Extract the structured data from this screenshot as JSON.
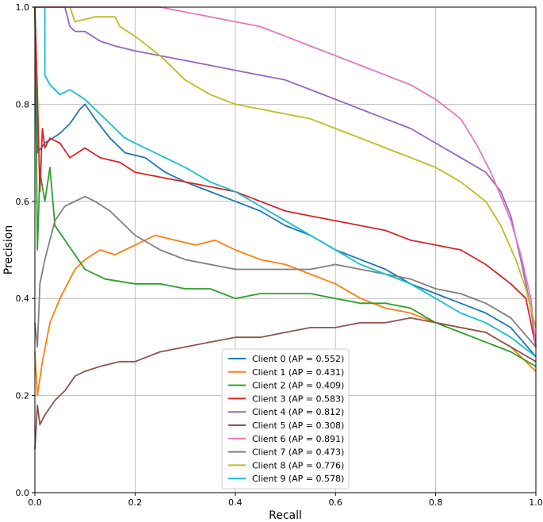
{
  "chart_data": {
    "type": "line",
    "xlabel": "Recall",
    "ylabel": "Precision",
    "xlim": [
      0.0,
      1.0
    ],
    "ylim": [
      0.0,
      1.0
    ],
    "x_ticks": [
      "0.0",
      "0.2",
      "0.4",
      "0.6",
      "0.8",
      "1.0"
    ],
    "y_ticks": [
      "0.0",
      "0.2",
      "0.4",
      "0.6",
      "0.8",
      "1.0"
    ],
    "grid": true,
    "legend_position": "lower-center",
    "series": [
      {
        "name": "Client 0 (AP = 0.552)",
        "color": "#1f77b4",
        "points": [
          [
            0.0,
            1.0
          ],
          [
            0.005,
            0.7
          ],
          [
            0.02,
            0.72
          ],
          [
            0.05,
            0.74
          ],
          [
            0.07,
            0.76
          ],
          [
            0.09,
            0.79
          ],
          [
            0.1,
            0.8
          ],
          [
            0.12,
            0.77
          ],
          [
            0.15,
            0.73
          ],
          [
            0.18,
            0.7
          ],
          [
            0.22,
            0.69
          ],
          [
            0.26,
            0.66
          ],
          [
            0.3,
            0.64
          ],
          [
            0.35,
            0.62
          ],
          [
            0.4,
            0.6
          ],
          [
            0.45,
            0.58
          ],
          [
            0.5,
            0.55
          ],
          [
            0.55,
            0.53
          ],
          [
            0.6,
            0.5
          ],
          [
            0.65,
            0.48
          ],
          [
            0.7,
            0.46
          ],
          [
            0.75,
            0.43
          ],
          [
            0.8,
            0.41
          ],
          [
            0.85,
            0.39
          ],
          [
            0.9,
            0.37
          ],
          [
            0.95,
            0.34
          ],
          [
            1.0,
            0.28
          ]
        ]
      },
      {
        "name": "Client 1 (AP = 0.431)",
        "color": "#ff7f0e",
        "points": [
          [
            0.0,
            0.29
          ],
          [
            0.005,
            0.2
          ],
          [
            0.015,
            0.27
          ],
          [
            0.03,
            0.35
          ],
          [
            0.05,
            0.4
          ],
          [
            0.08,
            0.46
          ],
          [
            0.1,
            0.48
          ],
          [
            0.13,
            0.5
          ],
          [
            0.16,
            0.49
          ],
          [
            0.2,
            0.51
          ],
          [
            0.24,
            0.53
          ],
          [
            0.28,
            0.52
          ],
          [
            0.32,
            0.51
          ],
          [
            0.36,
            0.52
          ],
          [
            0.4,
            0.5
          ],
          [
            0.45,
            0.48
          ],
          [
            0.5,
            0.47
          ],
          [
            0.55,
            0.45
          ],
          [
            0.6,
            0.43
          ],
          [
            0.65,
            0.4
          ],
          [
            0.7,
            0.38
          ],
          [
            0.75,
            0.37
          ],
          [
            0.8,
            0.35
          ],
          [
            0.85,
            0.34
          ],
          [
            0.9,
            0.33
          ],
          [
            0.95,
            0.3
          ],
          [
            1.0,
            0.25
          ]
        ]
      },
      {
        "name": "Client 2 (AP = 0.409)",
        "color": "#2ca02c",
        "points": [
          [
            0.0,
            1.0
          ],
          [
            0.005,
            0.5
          ],
          [
            0.01,
            0.66
          ],
          [
            0.02,
            0.6
          ],
          [
            0.03,
            0.67
          ],
          [
            0.04,
            0.55
          ],
          [
            0.06,
            0.52
          ],
          [
            0.08,
            0.49
          ],
          [
            0.1,
            0.46
          ],
          [
            0.14,
            0.44
          ],
          [
            0.2,
            0.43
          ],
          [
            0.25,
            0.43
          ],
          [
            0.3,
            0.42
          ],
          [
            0.35,
            0.42
          ],
          [
            0.4,
            0.4
          ],
          [
            0.45,
            0.41
          ],
          [
            0.5,
            0.41
          ],
          [
            0.55,
            0.41
          ],
          [
            0.6,
            0.4
          ],
          [
            0.65,
            0.39
          ],
          [
            0.7,
            0.39
          ],
          [
            0.75,
            0.38
          ],
          [
            0.8,
            0.35
          ],
          [
            0.85,
            0.33
          ],
          [
            0.9,
            0.31
          ],
          [
            0.95,
            0.29
          ],
          [
            1.0,
            0.26
          ]
        ]
      },
      {
        "name": "Client 3 (AP = 0.583)",
        "color": "#d62728",
        "points": [
          [
            0.0,
            1.0
          ],
          [
            0.005,
            0.82
          ],
          [
            0.01,
            0.62
          ],
          [
            0.015,
            0.75
          ],
          [
            0.02,
            0.71
          ],
          [
            0.03,
            0.73
          ],
          [
            0.05,
            0.72
          ],
          [
            0.07,
            0.69
          ],
          [
            0.1,
            0.71
          ],
          [
            0.13,
            0.69
          ],
          [
            0.17,
            0.68
          ],
          [
            0.2,
            0.66
          ],
          [
            0.25,
            0.65
          ],
          [
            0.3,
            0.64
          ],
          [
            0.35,
            0.63
          ],
          [
            0.4,
            0.62
          ],
          [
            0.45,
            0.6
          ],
          [
            0.5,
            0.58
          ],
          [
            0.55,
            0.57
          ],
          [
            0.6,
            0.56
          ],
          [
            0.65,
            0.55
          ],
          [
            0.7,
            0.54
          ],
          [
            0.75,
            0.52
          ],
          [
            0.8,
            0.51
          ],
          [
            0.85,
            0.5
          ],
          [
            0.9,
            0.47
          ],
          [
            0.95,
            0.43
          ],
          [
            0.98,
            0.4
          ],
          [
            1.0,
            0.3
          ]
        ]
      },
      {
        "name": "Client 4 (AP = 0.812)",
        "color": "#9467bd",
        "points": [
          [
            0.0,
            1.0
          ],
          [
            0.06,
            1.0
          ],
          [
            0.07,
            0.96
          ],
          [
            0.08,
            0.95
          ],
          [
            0.1,
            0.95
          ],
          [
            0.13,
            0.93
          ],
          [
            0.16,
            0.92
          ],
          [
            0.2,
            0.91
          ],
          [
            0.25,
            0.9
          ],
          [
            0.3,
            0.89
          ],
          [
            0.35,
            0.88
          ],
          [
            0.4,
            0.87
          ],
          [
            0.45,
            0.86
          ],
          [
            0.5,
            0.85
          ],
          [
            0.55,
            0.83
          ],
          [
            0.6,
            0.81
          ],
          [
            0.65,
            0.79
          ],
          [
            0.7,
            0.77
          ],
          [
            0.75,
            0.75
          ],
          [
            0.8,
            0.72
          ],
          [
            0.85,
            0.69
          ],
          [
            0.9,
            0.66
          ],
          [
            0.93,
            0.62
          ],
          [
            0.95,
            0.57
          ],
          [
            0.97,
            0.48
          ],
          [
            0.99,
            0.38
          ],
          [
            1.0,
            0.3
          ]
        ]
      },
      {
        "name": "Client 5 (AP = 0.308)",
        "color": "#8c564b",
        "points": [
          [
            0.0,
            0.09
          ],
          [
            0.005,
            0.18
          ],
          [
            0.01,
            0.14
          ],
          [
            0.02,
            0.16
          ],
          [
            0.04,
            0.19
          ],
          [
            0.06,
            0.21
          ],
          [
            0.08,
            0.24
          ],
          [
            0.1,
            0.25
          ],
          [
            0.13,
            0.26
          ],
          [
            0.17,
            0.27
          ],
          [
            0.2,
            0.27
          ],
          [
            0.25,
            0.29
          ],
          [
            0.3,
            0.3
          ],
          [
            0.35,
            0.31
          ],
          [
            0.4,
            0.32
          ],
          [
            0.45,
            0.32
          ],
          [
            0.5,
            0.33
          ],
          [
            0.55,
            0.34
          ],
          [
            0.6,
            0.34
          ],
          [
            0.65,
            0.35
          ],
          [
            0.7,
            0.35
          ],
          [
            0.75,
            0.36
          ],
          [
            0.8,
            0.35
          ],
          [
            0.85,
            0.34
          ],
          [
            0.9,
            0.33
          ],
          [
            0.95,
            0.3
          ],
          [
            1.0,
            0.27
          ]
        ]
      },
      {
        "name": "Client 6 (AP = 0.891)",
        "color": "#e377c2",
        "points": [
          [
            0.0,
            1.0
          ],
          [
            0.25,
            1.0
          ],
          [
            0.3,
            0.99
          ],
          [
            0.35,
            0.98
          ],
          [
            0.4,
            0.97
          ],
          [
            0.45,
            0.96
          ],
          [
            0.5,
            0.94
          ],
          [
            0.55,
            0.92
          ],
          [
            0.6,
            0.9
          ],
          [
            0.65,
            0.88
          ],
          [
            0.7,
            0.86
          ],
          [
            0.75,
            0.84
          ],
          [
            0.8,
            0.81
          ],
          [
            0.85,
            0.77
          ],
          [
            0.88,
            0.72
          ],
          [
            0.91,
            0.66
          ],
          [
            0.93,
            0.61
          ],
          [
            0.95,
            0.56
          ],
          [
            0.97,
            0.49
          ],
          [
            0.99,
            0.4
          ],
          [
            1.0,
            0.3
          ]
        ]
      },
      {
        "name": "Client 7 (AP = 0.473)",
        "color": "#7f7f7f",
        "points": [
          [
            0.0,
            0.35
          ],
          [
            0.005,
            0.3
          ],
          [
            0.01,
            0.43
          ],
          [
            0.02,
            0.48
          ],
          [
            0.04,
            0.56
          ],
          [
            0.06,
            0.59
          ],
          [
            0.08,
            0.6
          ],
          [
            0.1,
            0.61
          ],
          [
            0.12,
            0.6
          ],
          [
            0.15,
            0.58
          ],
          [
            0.18,
            0.55
          ],
          [
            0.2,
            0.53
          ],
          [
            0.25,
            0.5
          ],
          [
            0.3,
            0.48
          ],
          [
            0.35,
            0.47
          ],
          [
            0.4,
            0.46
          ],
          [
            0.45,
            0.46
          ],
          [
            0.5,
            0.46
          ],
          [
            0.55,
            0.46
          ],
          [
            0.6,
            0.47
          ],
          [
            0.65,
            0.46
          ],
          [
            0.7,
            0.45
          ],
          [
            0.75,
            0.44
          ],
          [
            0.8,
            0.42
          ],
          [
            0.85,
            0.41
          ],
          [
            0.9,
            0.39
          ],
          [
            0.95,
            0.36
          ],
          [
            1.0,
            0.3
          ]
        ]
      },
      {
        "name": "Client 8 (AP = 0.776)",
        "color": "#bcbd22",
        "points": [
          [
            0.07,
            1.0
          ],
          [
            0.08,
            0.97
          ],
          [
            0.12,
            0.98
          ],
          [
            0.16,
            0.98
          ],
          [
            0.17,
            0.96
          ],
          [
            0.2,
            0.94
          ],
          [
            0.25,
            0.9
          ],
          [
            0.3,
            0.85
          ],
          [
            0.35,
            0.82
          ],
          [
            0.4,
            0.8
          ],
          [
            0.45,
            0.79
          ],
          [
            0.5,
            0.78
          ],
          [
            0.55,
            0.77
          ],
          [
            0.6,
            0.75
          ],
          [
            0.65,
            0.73
          ],
          [
            0.7,
            0.71
          ],
          [
            0.75,
            0.69
          ],
          [
            0.8,
            0.67
          ],
          [
            0.85,
            0.64
          ],
          [
            0.9,
            0.6
          ],
          [
            0.93,
            0.55
          ],
          [
            0.96,
            0.48
          ],
          [
            0.98,
            0.42
          ],
          [
            1.0,
            0.34
          ]
        ]
      },
      {
        "name": "Client 9 (AP = 0.578)",
        "color": "#17becf",
        "points": [
          [
            0.02,
            1.0
          ],
          [
            0.02,
            0.86
          ],
          [
            0.03,
            0.84
          ],
          [
            0.05,
            0.82
          ],
          [
            0.07,
            0.83
          ],
          [
            0.1,
            0.81
          ],
          [
            0.12,
            0.79
          ],
          [
            0.15,
            0.76
          ],
          [
            0.18,
            0.73
          ],
          [
            0.22,
            0.71
          ],
          [
            0.26,
            0.69
          ],
          [
            0.3,
            0.67
          ],
          [
            0.35,
            0.64
          ],
          [
            0.4,
            0.62
          ],
          [
            0.45,
            0.59
          ],
          [
            0.5,
            0.56
          ],
          [
            0.55,
            0.53
          ],
          [
            0.6,
            0.5
          ],
          [
            0.65,
            0.47
          ],
          [
            0.7,
            0.45
          ],
          [
            0.75,
            0.43
          ],
          [
            0.8,
            0.4
          ],
          [
            0.85,
            0.37
          ],
          [
            0.9,
            0.35
          ],
          [
            0.95,
            0.32
          ],
          [
            1.0,
            0.28
          ]
        ]
      }
    ]
  }
}
